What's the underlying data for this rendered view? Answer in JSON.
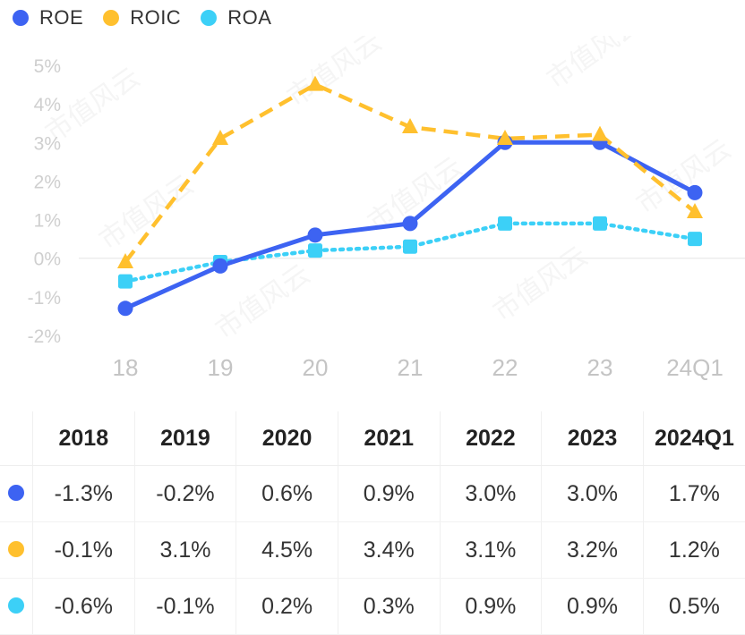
{
  "chart_data": {
    "type": "line",
    "categories": [
      "18",
      "19",
      "20",
      "21",
      "22",
      "23",
      "24Q1"
    ],
    "series": [
      {
        "name": "ROE",
        "color": "#3d63f2",
        "line_style": "solid",
        "marker": "circle",
        "values": [
          -1.3,
          -0.2,
          0.6,
          0.9,
          3.0,
          3.0,
          1.7
        ]
      },
      {
        "name": "ROIC",
        "color": "#ffc02e",
        "line_style": "dashed",
        "marker": "triangle",
        "values": [
          -0.1,
          3.1,
          4.5,
          3.4,
          3.1,
          3.2,
          1.2
        ]
      },
      {
        "name": "ROA",
        "color": "#3cd0f7",
        "line_style": "dotted",
        "marker": "square",
        "values": [
          -0.6,
          -0.1,
          0.2,
          0.3,
          0.9,
          0.9,
          0.5
        ]
      }
    ],
    "ylim": [
      -2,
      5
    ],
    "y_ticks": [
      "-2%",
      "-1%",
      "0%",
      "1%",
      "2%",
      "3%",
      "4%",
      "5%"
    ],
    "legend_position": "top-left",
    "grid": false,
    "watermark": "市值风云"
  },
  "table": {
    "headers": [
      "2018",
      "2019",
      "2020",
      "2021",
      "2022",
      "2023",
      "2024Q1"
    ],
    "rows": [
      {
        "series": "ROE",
        "color": "#3d63f2",
        "values": [
          "-1.3%",
          "-0.2%",
          "0.6%",
          "0.9%",
          "3.0%",
          "3.0%",
          "1.7%"
        ]
      },
      {
        "series": "ROIC",
        "color": "#ffc02e",
        "values": [
          "-0.1%",
          "3.1%",
          "4.5%",
          "3.4%",
          "3.1%",
          "3.2%",
          "1.2%"
        ]
      },
      {
        "series": "ROA",
        "color": "#3cd0f7",
        "values": [
          "-0.6%",
          "-0.1%",
          "0.2%",
          "0.3%",
          "0.9%",
          "0.9%",
          "0.5%"
        ]
      }
    ]
  }
}
